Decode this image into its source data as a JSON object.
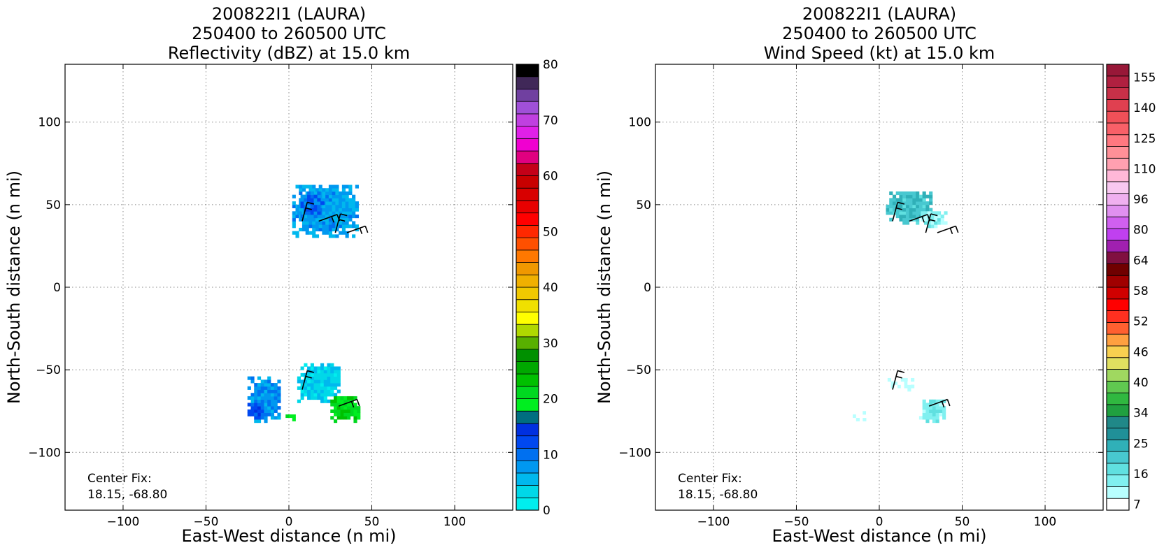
{
  "panels": [
    {
      "title_lines": [
        "200822I1 (LAURA)",
        "250400 to 260500 UTC",
        "Reflectivity (dBZ) at 15.0 km"
      ],
      "xlabel": "East-West distance (n mi)",
      "ylabel": "North-South distance (n mi)",
      "center_fix_label": "Center Fix:",
      "center_fix_value": "18.15, -68.80",
      "colorbar": {
        "min": 0,
        "max": 80,
        "ticks": [
          "0",
          "10",
          "20",
          "30",
          "40",
          "50",
          "60",
          "70",
          "80"
        ],
        "colors": [
          "#00eeee",
          "#00d8e8",
          "#00b8ee",
          "#0098f0",
          "#0070f0",
          "#0048f0",
          "#0030e0",
          "#006e80",
          "#00ee20",
          "#00d820",
          "#00c000",
          "#00a800",
          "#009000",
          "#58b000",
          "#b0d800",
          "#ffff00",
          "#f0e000",
          "#f0c800",
          "#f0b000",
          "#f09800",
          "#ff7800",
          "#ff5000",
          "#ff2800",
          "#ff0000",
          "#e80000",
          "#d80000",
          "#c80000",
          "#c40018",
          "#e00080",
          "#f000d0",
          "#e020e8",
          "#c040e0",
          "#a050d8",
          "#7040a0",
          "#402858",
          "#000000"
        ]
      }
    },
    {
      "title_lines": [
        "200822I1 (LAURA)",
        "250400 to 260500 UTC",
        "Wind Speed (kt) at 15.0 km"
      ],
      "xlabel": "East-West distance (n mi)",
      "ylabel": "North-South distance (n mi)",
      "center_fix_label": "Center Fix:",
      "center_fix_value": "18.15, -68.80",
      "colorbar": {
        "ticks": [
          "7",
          "16",
          "25",
          "34",
          "40",
          "46",
          "52",
          "58",
          "64",
          "80",
          "96",
          "110",
          "125",
          "140",
          "155"
        ],
        "colors": [
          "#ffffff",
          "#b8ffff",
          "#80f0f0",
          "#60e0e0",
          "#48c8d0",
          "#30b0b8",
          "#209098",
          "#208888",
          "#20a040",
          "#30b840",
          "#60c850",
          "#a0d860",
          "#e0e060",
          "#f8d050",
          "#ffa040",
          "#ff6030",
          "#ff3020",
          "#ff0000",
          "#d00000",
          "#a00000",
          "#700000",
          "#801040",
          "#a020b0",
          "#c040f0",
          "#d060f0",
          "#e090f0",
          "#f0b0f0",
          "#f8c8f0",
          "#ffb8d8",
          "#ffa0b0",
          "#ff9098",
          "#ff7880",
          "#f86068",
          "#f05058",
          "#e04050",
          "#c83048",
          "#b02040",
          "#981838"
        ]
      }
    }
  ],
  "chart_data": [
    {
      "type": "heatmap",
      "title": "200822I1 (LAURA) 250400 to 260500 UTC Reflectivity (dBZ) at 15.0 km",
      "xlabel": "East-West distance (n mi)",
      "ylabel": "North-South distance (n mi)",
      "xlim": [
        -135,
        135
      ],
      "ylim": [
        -135,
        135
      ],
      "xticks": [
        -100,
        -50,
        0,
        50,
        100
      ],
      "yticks": [
        -100,
        -50,
        0,
        50,
        100
      ],
      "grid": true,
      "colorbar_range": [
        0,
        80
      ],
      "echo_regions": [
        {
          "x": [
            2,
            42
          ],
          "y": [
            30,
            62
          ],
          "dbz": 7
        },
        {
          "x": [
            5,
            20
          ],
          "y": [
            42,
            57
          ],
          "dbz": 10
        },
        {
          "x": [
            -25,
            -5
          ],
          "y": [
            -82,
            -55
          ],
          "dbz": 8
        },
        {
          "x": [
            -25,
            -15
          ],
          "y": [
            -82,
            -70
          ],
          "dbz": 12
        },
        {
          "x": [
            5,
            30
          ],
          "y": [
            -70,
            -47
          ],
          "dbz": 4
        },
        {
          "x": [
            25,
            42
          ],
          "y": [
            -82,
            -67
          ],
          "dbz": 21
        },
        {
          "x": [
            -2,
            3
          ],
          "y": [
            -81,
            -78
          ],
          "dbz": 20
        }
      ],
      "wind_barb_locations": [
        [
          8,
          40
        ],
        [
          18,
          40
        ],
        [
          28,
          33
        ],
        [
          35,
          33
        ],
        [
          8,
          -62
        ],
        [
          30,
          -72
        ]
      ]
    },
    {
      "type": "heatmap",
      "title": "200822I1 (LAURA) 250400 to 260500 UTC Wind Speed (kt) at 15.0 km",
      "xlabel": "East-West distance (n mi)",
      "ylabel": "North-South distance (n mi)",
      "xlim": [
        -135,
        135
      ],
      "ylim": [
        -135,
        135
      ],
      "xticks": [
        -100,
        -50,
        0,
        50,
        100
      ],
      "yticks": [
        -100,
        -50,
        0,
        50,
        100
      ],
      "grid": true,
      "colorbar_range": [
        7,
        160
      ],
      "wind_regions": [
        {
          "x": [
            4,
            32
          ],
          "y": [
            38,
            57
          ],
          "kt": 26
        },
        {
          "x": [
            25,
            40
          ],
          "y": [
            36,
            46
          ],
          "kt": 16
        },
        {
          "x": [
            24,
            40
          ],
          "y": [
            -82,
            -68
          ],
          "kt": 18
        },
        {
          "x": [
            5,
            20
          ],
          "y": [
            -63,
            -56
          ],
          "kt": 10
        },
        {
          "x": [
            -18,
            -2
          ],
          "y": [
            -81,
            -76
          ],
          "kt": 10
        }
      ],
      "wind_barb_locations": [
        [
          8,
          40
        ],
        [
          18,
          40
        ],
        [
          28,
          33
        ],
        [
          35,
          33
        ],
        [
          8,
          -62
        ],
        [
          30,
          -72
        ]
      ]
    }
  ]
}
